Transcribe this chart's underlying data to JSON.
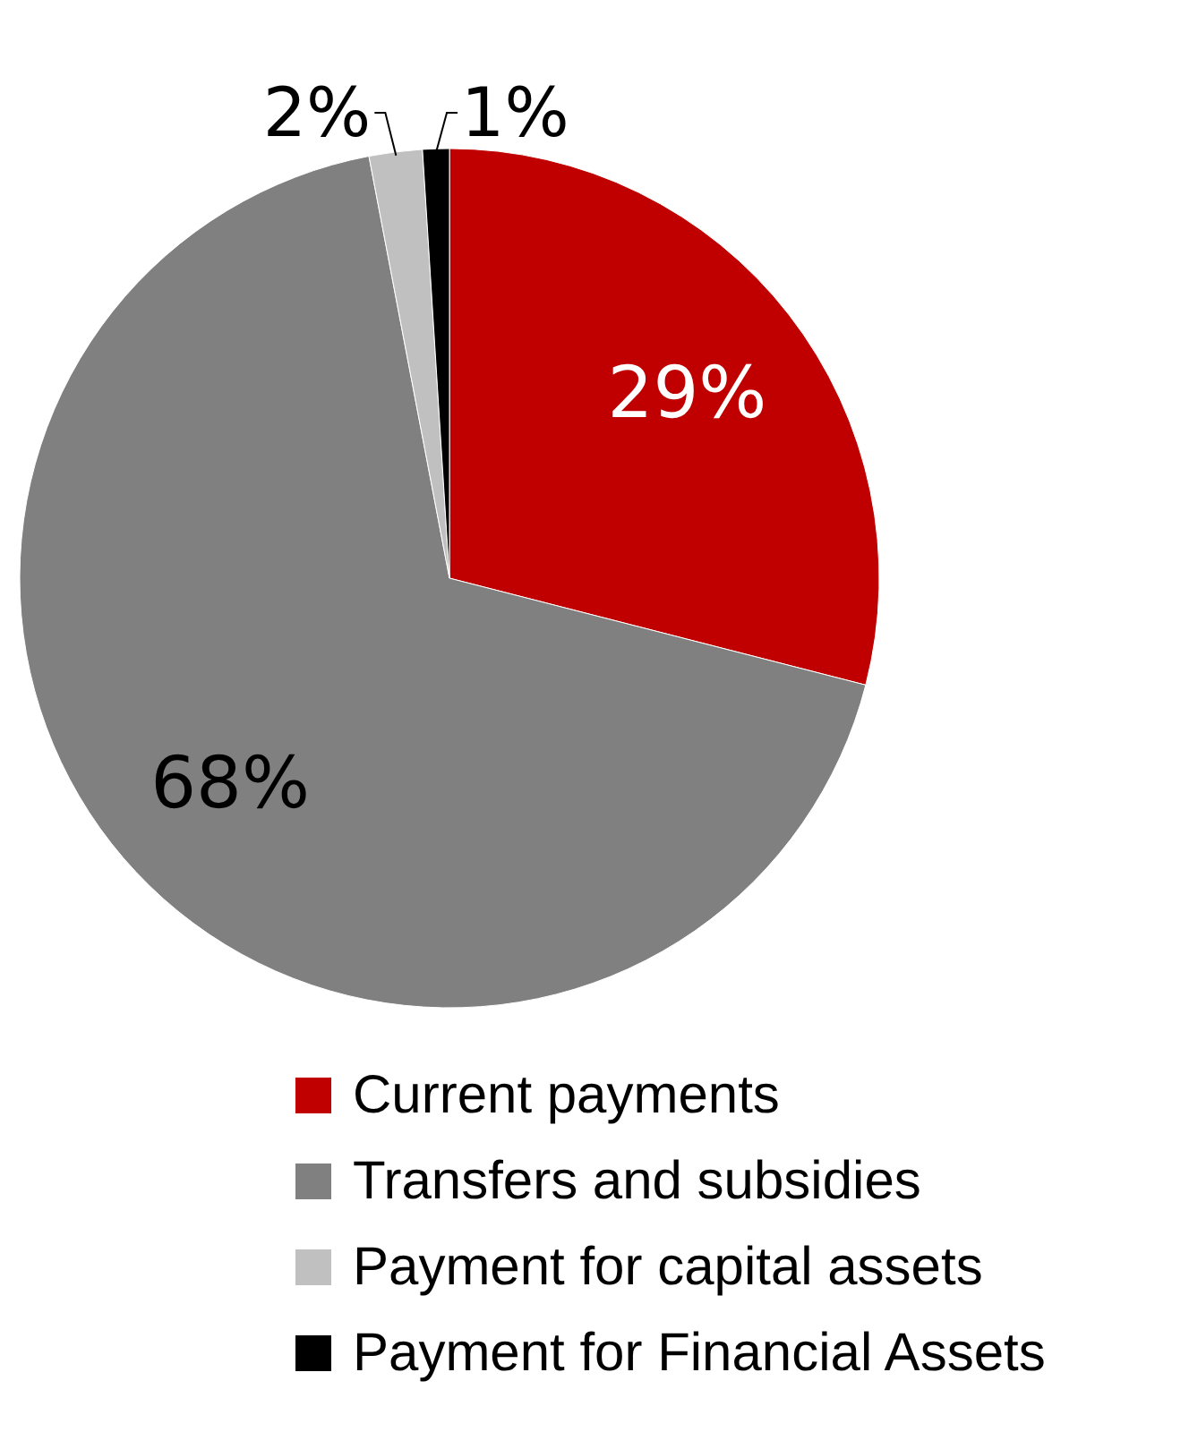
{
  "chart_data": {
    "type": "pie",
    "categories": [
      "Current payments",
      "Transfers and subsidies",
      "Payment for capital assets",
      "Payment for Financial Assets"
    ],
    "values": [
      29,
      68,
      2,
      1
    ],
    "colors": [
      "#c00000",
      "#808080",
      "#c0c0c0",
      "#000000"
    ],
    "value_labels": [
      "29%",
      "68%",
      "2%",
      "1%"
    ],
    "legend": "bottom"
  }
}
